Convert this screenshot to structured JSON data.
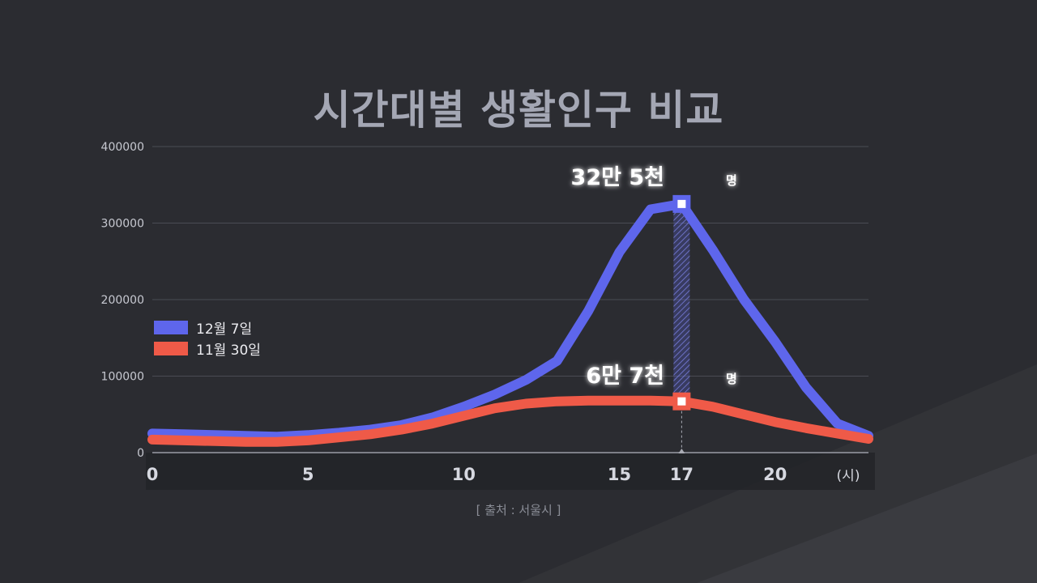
{
  "title": "시간대별 생활인구 비교",
  "source": "[ 출처 : 서울시 ]",
  "colors": {
    "background": "#2b2c31",
    "series_a": "#5e66ec",
    "series_b": "#ef5a48"
  },
  "chart_data": {
    "type": "line",
    "title": "시간대별 생활인구 비교",
    "x_unit": "(시)",
    "x_ticks": [
      0,
      5,
      10,
      15,
      17,
      20
    ],
    "y_ticks": [
      0,
      100000,
      200000,
      300000,
      400000
    ],
    "ylim": [
      0,
      400000
    ],
    "xlim": [
      0,
      23
    ],
    "grid": true,
    "legend_position": "left",
    "x": [
      0,
      1,
      2,
      3,
      4,
      5,
      6,
      7,
      8,
      9,
      10,
      11,
      12,
      13,
      14,
      15,
      16,
      17,
      18,
      19,
      20,
      21,
      22,
      23
    ],
    "series": [
      {
        "name": "12월 7일",
        "color": "#5e66ec",
        "values": [
          25000,
          24000,
          23000,
          22000,
          21000,
          23000,
          26000,
          30000,
          36000,
          46000,
          60000,
          76000,
          95000,
          120000,
          185000,
          262000,
          318000,
          325000,
          265000,
          200000,
          145000,
          85000,
          38000,
          22000
        ]
      },
      {
        "name": "11월 30일",
        "color": "#ef5a48",
        "values": [
          17000,
          16000,
          15000,
          14000,
          14000,
          16000,
          20000,
          24000,
          30000,
          38000,
          48000,
          58000,
          64000,
          67000,
          68000,
          68000,
          68000,
          67000,
          60000,
          50000,
          40000,
          32000,
          25000,
          18000
        ]
      }
    ],
    "annotations": [
      {
        "x": 17,
        "y": 325000,
        "label": "32만 5천",
        "unit": "명",
        "series": "12월 7일"
      },
      {
        "x": 17,
        "y": 67000,
        "label": "6만 7천",
        "unit": "명",
        "series": "11월 30일"
      }
    ]
  }
}
